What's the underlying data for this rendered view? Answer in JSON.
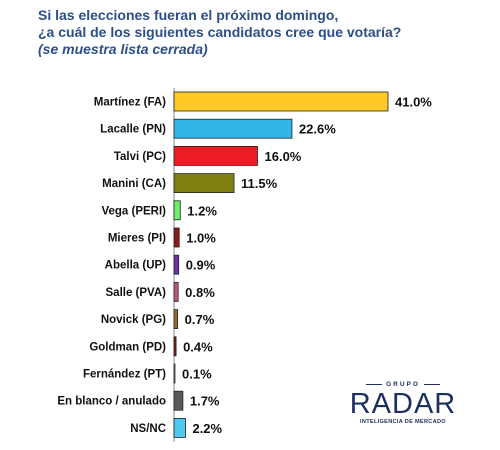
{
  "header": {
    "title_line1": "Si las elecciones fueran el próximo domingo,",
    "title_line2": "¿a cuál de los siguientes candidatos cree que votaría?",
    "subtitle": "(se muestra lista cerrada)"
  },
  "logo": {
    "top": "GRUPO",
    "name": "RADAR",
    "tagline": "INTELIGENCIA DE MERCADO"
  },
  "chart_data": {
    "type": "bar",
    "orientation": "horizontal",
    "categories": [
      "Martínez (FA)",
      "Lacalle (PN)",
      "Talvi (PC)",
      "Manini (CA)",
      "Vega (PERI)",
      "Mieres (PI)",
      "Abella (UP)",
      "Salle (PVA)",
      "Novick (PG)",
      "Goldman (PD)",
      "Fernández (PT)",
      "En blanco / anulado",
      "NS/NC"
    ],
    "values": [
      41.0,
      22.6,
      16.0,
      11.5,
      1.2,
      1.0,
      0.9,
      0.8,
      0.7,
      0.4,
      0.1,
      1.7,
      2.2
    ],
    "value_labels": [
      "41.0%",
      "22.6%",
      "16.0%",
      "11.5%",
      "1.2%",
      "1.0%",
      "0.9%",
      "0.8%",
      "0.7%",
      "0.4%",
      "0.1%",
      "1.7%",
      "2.2%"
    ],
    "colors": [
      "#ffc926",
      "#33b5ea",
      "#ee1c24",
      "#808011",
      "#6df06d",
      "#8b1a1a",
      "#7030a0",
      "#c0577f",
      "#9c6a2a",
      "#7a1e0e",
      "#ffffff",
      "#595959",
      "#4dc8ef"
    ],
    "xlim": [
      0,
      41.0
    ],
    "grid": false,
    "legend": "none"
  }
}
